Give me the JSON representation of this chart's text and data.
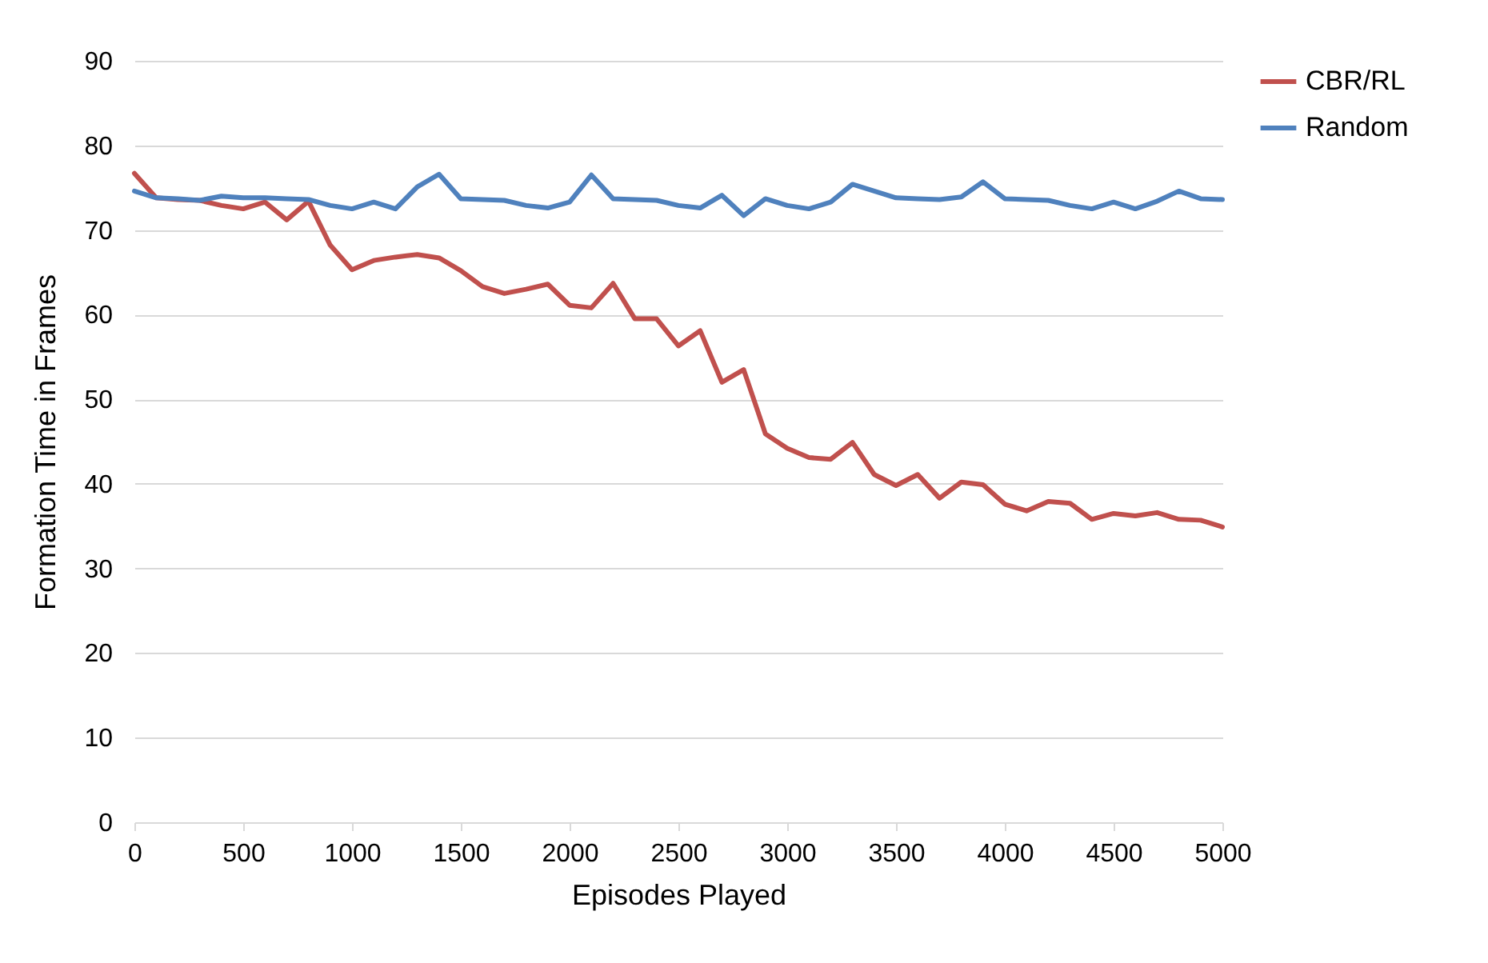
{
  "chart_data": {
    "type": "line",
    "xlabel": "Episodes Played",
    "ylabel": "Formation Time in Frames",
    "x": [
      0,
      100,
      200,
      300,
      400,
      500,
      600,
      700,
      800,
      900,
      1000,
      1100,
      1200,
      1300,
      1400,
      1500,
      1600,
      1700,
      1800,
      1900,
      2000,
      2100,
      2200,
      2300,
      2400,
      2500,
      2600,
      2700,
      2800,
      2900,
      3000,
      3100,
      3200,
      3300,
      3400,
      3500,
      3600,
      3700,
      3800,
      3900,
      4000,
      4100,
      4200,
      4300,
      4400,
      4500,
      4600,
      4700,
      4800,
      4900,
      5000
    ],
    "series": [
      {
        "name": "CBR/RL",
        "color": "#c0504d",
        "values": [
          76.7,
          73.8,
          73.6,
          73.5,
          72.9,
          72.5,
          73.3,
          71.2,
          73.4,
          68.2,
          65.3,
          66.4,
          66.8,
          67.1,
          66.7,
          65.2,
          63.3,
          62.5,
          63.0,
          63.6,
          61.1,
          60.8,
          63.7,
          59.5,
          59.5,
          56.3,
          58.1,
          52.0,
          53.5,
          45.9,
          44.2,
          43.1,
          42.9,
          44.9,
          41.1,
          39.8,
          41.1,
          38.3,
          40.2,
          39.9,
          37.6,
          36.8,
          37.9,
          37.7,
          35.8,
          36.5,
          36.2,
          36.6,
          35.8,
          35.7,
          34.9
        ]
      },
      {
        "name": "Random",
        "color": "#4f81bd",
        "values": [
          74.6,
          73.8,
          73.7,
          73.5,
          74.0,
          73.8,
          73.8,
          73.7,
          73.6,
          72.9,
          72.5,
          73.3,
          72.5,
          75.1,
          76.6,
          73.7,
          73.6,
          73.5,
          72.9,
          72.6,
          73.3,
          76.5,
          73.7,
          73.6,
          73.5,
          72.9,
          72.6,
          74.1,
          71.7,
          73.7,
          72.9,
          72.5,
          73.3,
          75.4,
          74.6,
          73.8,
          73.7,
          73.6,
          73.9,
          75.7,
          73.7,
          73.6,
          73.5,
          72.9,
          72.5,
          73.3,
          72.5,
          73.4,
          74.6,
          73.7,
          73.6
        ]
      }
    ],
    "xlim": [
      0,
      5000
    ],
    "xticks": [
      0,
      500,
      1000,
      1500,
      2000,
      2500,
      3000,
      3500,
      4000,
      4500,
      5000
    ],
    "ylim": [
      0,
      90
    ],
    "yticks": [
      0,
      10,
      20,
      30,
      40,
      50,
      60,
      70,
      80,
      90
    ],
    "grid": "y",
    "legend": "right",
    "marker": "none",
    "line_style": "solid"
  }
}
